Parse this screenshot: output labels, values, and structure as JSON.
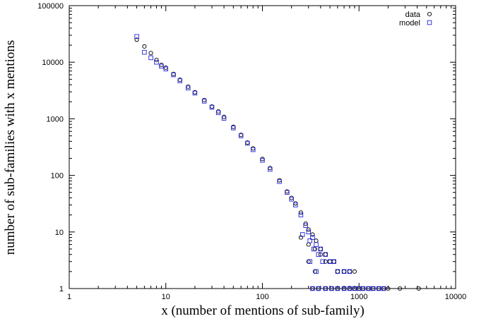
{
  "chart_data": {
    "type": "scatter",
    "title": "",
    "xlabel": "x (number of mentions of sub-family)",
    "ylabel": "number of sub-families with x mentions",
    "xscale": "log",
    "yscale": "log",
    "xlim": [
      1,
      10000
    ],
    "ylim": [
      1,
      100000
    ],
    "grid": false,
    "legend_position": "top-right",
    "x_tick_labels": [
      "1",
      "10",
      "100",
      "1000",
      "10000"
    ],
    "y_tick_labels": [
      "1",
      "10",
      "100",
      "1000",
      "10000",
      "100000"
    ],
    "series": [
      {
        "name": "data",
        "marker": "circle",
        "color": "#000000",
        "points": [
          [
            5,
            25000
          ],
          [
            6,
            19000
          ],
          [
            7,
            14500
          ],
          [
            8,
            11000
          ],
          [
            9,
            9000
          ],
          [
            10,
            8000
          ],
          [
            12,
            6200
          ],
          [
            14,
            4900
          ],
          [
            17,
            3700
          ],
          [
            20,
            2950
          ],
          [
            25,
            2150
          ],
          [
            30,
            1650
          ],
          [
            35,
            1350
          ],
          [
            40,
            1080
          ],
          [
            50,
            720
          ],
          [
            60,
            520
          ],
          [
            70,
            380
          ],
          [
            80,
            300
          ],
          [
            100,
            195
          ],
          [
            120,
            135
          ],
          [
            150,
            82
          ],
          [
            180,
            52
          ],
          [
            200,
            40
          ],
          [
            220,
            32
          ],
          [
            250,
            22
          ],
          [
            280,
            14
          ],
          [
            300,
            11
          ],
          [
            330,
            9
          ],
          [
            360,
            7
          ],
          [
            400,
            5
          ],
          [
            450,
            4
          ],
          [
            500,
            3
          ],
          [
            550,
            3
          ],
          [
            600,
            2
          ],
          [
            700,
            2
          ],
          [
            800,
            2
          ],
          [
            900,
            2
          ],
          [
            250,
            8
          ],
          [
            300,
            6
          ],
          [
            350,
            5
          ],
          [
            400,
            4
          ],
          [
            450,
            3
          ],
          [
            300,
            3
          ],
          [
            350,
            2
          ],
          [
            330,
            1
          ],
          [
            380,
            1
          ],
          [
            450,
            1
          ],
          [
            520,
            1
          ],
          [
            600,
            1
          ],
          [
            700,
            1
          ],
          [
            800,
            1
          ],
          [
            900,
            1
          ],
          [
            1000,
            1
          ],
          [
            1100,
            1
          ],
          [
            1250,
            1
          ],
          [
            1400,
            1
          ],
          [
            1600,
            1
          ],
          [
            1800,
            1
          ],
          [
            2000,
            1
          ],
          [
            2650,
            1
          ],
          [
            4150,
            1
          ]
        ]
      },
      {
        "name": "model",
        "marker": "square",
        "color": "#2222dd",
        "points": [
          [
            5,
            28500
          ],
          [
            6,
            15000
          ],
          [
            7,
            12000
          ],
          [
            8,
            10000
          ],
          [
            9,
            8500
          ],
          [
            10,
            7600
          ],
          [
            12,
            6000
          ],
          [
            14,
            4700
          ],
          [
            17,
            3500
          ],
          [
            20,
            2850
          ],
          [
            25,
            2050
          ],
          [
            30,
            1600
          ],
          [
            35,
            1280
          ],
          [
            40,
            1020
          ],
          [
            50,
            690
          ],
          [
            60,
            500
          ],
          [
            70,
            370
          ],
          [
            80,
            285
          ],
          [
            100,
            185
          ],
          [
            120,
            128
          ],
          [
            150,
            78
          ],
          [
            180,
            50
          ],
          [
            200,
            38
          ],
          [
            220,
            30
          ],
          [
            250,
            20
          ],
          [
            280,
            13
          ],
          [
            300,
            10
          ],
          [
            330,
            8
          ],
          [
            360,
            6
          ],
          [
            400,
            5
          ],
          [
            450,
            4
          ],
          [
            500,
            3
          ],
          [
            550,
            3
          ],
          [
            600,
            2
          ],
          [
            700,
            2
          ],
          [
            800,
            2
          ],
          [
            260,
            9
          ],
          [
            310,
            7
          ],
          [
            340,
            5
          ],
          [
            380,
            4
          ],
          [
            420,
            3
          ],
          [
            310,
            3
          ],
          [
            360,
            2
          ],
          [
            330,
            1
          ],
          [
            380,
            1
          ],
          [
            450,
            1
          ],
          [
            520,
            1
          ],
          [
            600,
            1
          ],
          [
            700,
            1
          ],
          [
            800,
            1
          ],
          [
            900,
            1
          ],
          [
            1000,
            1
          ],
          [
            1100,
            1
          ],
          [
            1250,
            1
          ],
          [
            1400,
            1
          ],
          [
            1600,
            1
          ],
          [
            1800,
            1
          ]
        ]
      }
    ]
  }
}
